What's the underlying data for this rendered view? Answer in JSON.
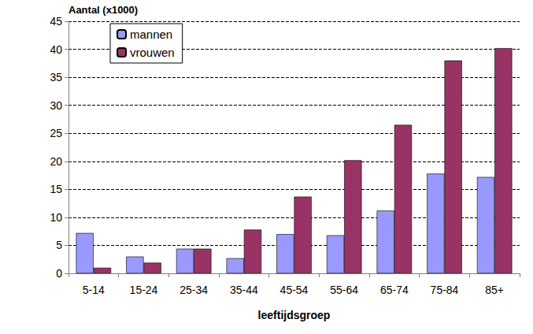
{
  "chart_data": {
    "type": "bar",
    "ylabel": "Aantal (x1000)",
    "xlabel": "leeftijdsgroep",
    "categories": [
      "5-14",
      "15-24",
      "25-34",
      "35-44",
      "45-54",
      "55-64",
      "65-74",
      "75-84",
      "85+"
    ],
    "series": [
      {
        "name": "mannen",
        "color": "#9999ff",
        "values": [
          7.2,
          3.0,
          4.4,
          2.7,
          7.0,
          6.8,
          11.2,
          17.8,
          17.2
        ]
      },
      {
        "name": "vrouwen",
        "color": "#993366",
        "values": [
          1.0,
          1.9,
          4.4,
          7.8,
          13.7,
          20.2,
          26.5,
          38.0,
          40.2
        ]
      }
    ],
    "ylim": [
      0,
      45
    ],
    "yticks": [
      0,
      5,
      10,
      15,
      20,
      25,
      30,
      35,
      40,
      45
    ],
    "grid": true,
    "legend": "upper left"
  }
}
